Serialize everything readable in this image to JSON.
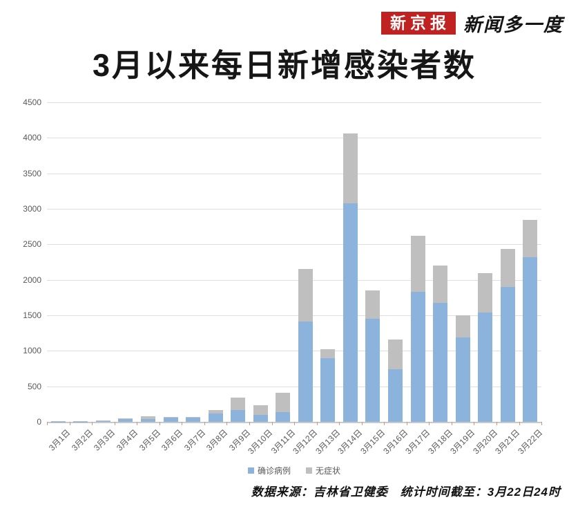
{
  "header": {
    "logo_box": "新京报",
    "logo_suffix": "新闻多一度",
    "title": "3月以来每日新增感染者数"
  },
  "chart_data": {
    "type": "bar",
    "stacked": true,
    "title": "3月以来每日新增感染者数",
    "categories": [
      "3月1日",
      "3月2日",
      "3月3日",
      "3月4日",
      "3月5日",
      "3月6日",
      "3月7日",
      "3月8日",
      "3月9日",
      "3月10日",
      "3月11日",
      "3月12日",
      "3月13日",
      "3月14日",
      "3月15日",
      "3月16日",
      "3月17日",
      "3月18日",
      "3月19日",
      "3月20日",
      "3月21日",
      "3月22日"
    ],
    "series": [
      {
        "name": "确诊病例",
        "color": "#8cb3db",
        "values": [
          5,
          5,
          10,
          40,
          40,
          55,
          60,
          120,
          165,
          98,
          134,
          1412,
          895,
          3076,
          1456,
          742,
          1834,
          1674,
          1191,
          1542,
          1902,
          2320
        ]
      },
      {
        "name": "无症状",
        "color": "#bfbfbf",
        "values": [
          5,
          5,
          8,
          10,
          35,
          10,
          10,
          45,
          175,
          134,
          276,
          744,
          131,
          991,
          397,
          415,
          791,
          532,
          307,
          557,
          532,
          528
        ]
      }
    ],
    "ylim": [
      0,
      4500
    ],
    "yticks": [
      0,
      500,
      1000,
      1500,
      2000,
      2500,
      3000,
      3500,
      4000,
      4500
    ],
    "grid": true,
    "legend_position": "bottom"
  },
  "footer": {
    "source": "数据来源：吉林省卫健委　统计时间截至：3月22日24时"
  },
  "colors": {
    "confirmed_blue": "#8cb3db",
    "asymptomatic_gray": "#bfbfbf",
    "logo_red": "#c02222",
    "gridline": "#dedede",
    "axis_text": "#595959",
    "tick_mark": "#c9988a"
  }
}
